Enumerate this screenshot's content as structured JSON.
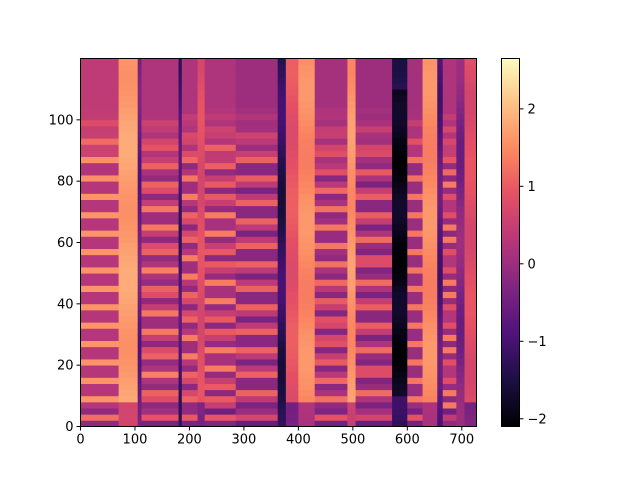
{
  "chart_data": {
    "type": "heatmap",
    "title": "",
    "xlabel": "",
    "ylabel": "",
    "xlim": [
      0,
      727
    ],
    "ylim": [
      0,
      120
    ],
    "x_ticks": [
      0,
      100,
      200,
      300,
      400,
      500,
      600,
      700
    ],
    "y_ticks": [
      0,
      20,
      40,
      60,
      80,
      100
    ],
    "colorbar": {
      "colormap": "magma",
      "vmin": -2.1,
      "vmax": 2.65,
      "ticks": [
        -2,
        -1,
        0,
        1,
        2
      ],
      "tick_labels": [
        "−2",
        "−1",
        "0",
        "1",
        "2"
      ]
    },
    "columns": [
      {
        "x_start": 0,
        "x_end": 70,
        "level": 0.6,
        "type": "voiced",
        "harmonic_spacing": 6.0
      },
      {
        "x_start": 70,
        "x_end": 105,
        "level": 1.7,
        "type": "bright"
      },
      {
        "x_start": 105,
        "x_end": 112,
        "level": -0.6,
        "type": "gap"
      },
      {
        "x_start": 112,
        "x_end": 180,
        "level": 0.4,
        "type": "voiced",
        "harmonic_spacing": 6.8
      },
      {
        "x_start": 180,
        "x_end": 186,
        "level": -1.0,
        "type": "gap"
      },
      {
        "x_start": 186,
        "x_end": 215,
        "level": 0.4,
        "type": "voiced",
        "harmonic_spacing": 6.5
      },
      {
        "x_start": 215,
        "x_end": 228,
        "level": 0.8,
        "type": "bright"
      },
      {
        "x_start": 228,
        "x_end": 285,
        "level": 0.4,
        "type": "voiced",
        "harmonic_spacing": 5.5
      },
      {
        "x_start": 285,
        "x_end": 362,
        "level": 0.2,
        "type": "voiced",
        "harmonic_spacing": 7.0
      },
      {
        "x_start": 362,
        "x_end": 377,
        "level": -1.3,
        "type": "gap"
      },
      {
        "x_start": 377,
        "x_end": 400,
        "level": 0.9,
        "type": "bright"
      },
      {
        "x_start": 400,
        "x_end": 430,
        "level": 1.5,
        "type": "bright"
      },
      {
        "x_start": 430,
        "x_end": 490,
        "level": 0.3,
        "type": "voiced",
        "harmonic_spacing": 6.2
      },
      {
        "x_start": 490,
        "x_end": 505,
        "level": 1.6,
        "type": "bright"
      },
      {
        "x_start": 505,
        "x_end": 572,
        "level": 0.2,
        "type": "voiced",
        "harmonic_spacing": 7.2
      },
      {
        "x_start": 572,
        "x_end": 600,
        "level": -1.9,
        "type": "silence"
      },
      {
        "x_start": 600,
        "x_end": 628,
        "level": 0.3,
        "type": "voiced",
        "harmonic_spacing": 6.0
      },
      {
        "x_start": 628,
        "x_end": 655,
        "level": 1.5,
        "type": "bright"
      },
      {
        "x_start": 655,
        "x_end": 665,
        "level": -0.8,
        "type": "gap"
      },
      {
        "x_start": 665,
        "x_end": 690,
        "level": 0.4,
        "type": "voiced",
        "harmonic_spacing": 4.5
      },
      {
        "x_start": 690,
        "x_end": 705,
        "level": -0.3,
        "type": "gap"
      },
      {
        "x_start": 705,
        "x_end": 727,
        "level": 0.8,
        "type": "bright"
      }
    ]
  }
}
